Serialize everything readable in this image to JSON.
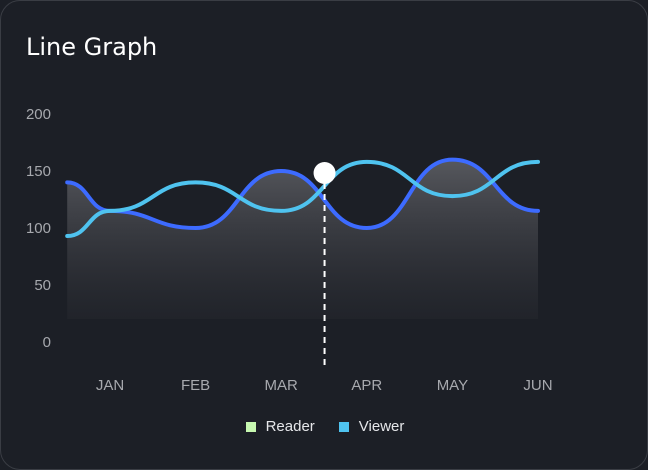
{
  "colors": {
    "background": "#1c1f26",
    "reader": "#3d6bff",
    "viewer": "#4fc3ef",
    "reader_legend": "#c6f7b0",
    "viewer_legend": "#4fc3ef",
    "marker": "#ffffff"
  },
  "chart_data": {
    "type": "line",
    "title": "Line Graph",
    "categories": [
      "JAN",
      "FEB",
      "MAR",
      "APR",
      "MAY",
      "JUN"
    ],
    "yticks": [
      "0",
      "50",
      "100",
      "150",
      "200"
    ],
    "ylim": [
      0,
      200
    ],
    "smooth": true,
    "area_fill_series": "Reader",
    "highlight": {
      "series": "Reader",
      "category": "MAR",
      "value": 150
    },
    "legend_position": "bottom-center",
    "series": [
      {
        "name": "Reader",
        "x": [
          0,
          0.5,
          1.5,
          2.5,
          3.5,
          4.5,
          5.5
        ],
        "values": [
          140,
          115,
          100,
          150,
          100,
          160,
          115
        ]
      },
      {
        "name": "Viewer",
        "x": [
          0,
          0.5,
          1.5,
          2.5,
          3.5,
          4.5,
          5.5
        ],
        "values": [
          93,
          115,
          140,
          115,
          158,
          128,
          158
        ]
      }
    ]
  },
  "legend": {
    "items": [
      {
        "label": "Reader",
        "color": "#c6f7b0"
      },
      {
        "label": "Viewer",
        "color": "#4fc3ef"
      }
    ]
  }
}
